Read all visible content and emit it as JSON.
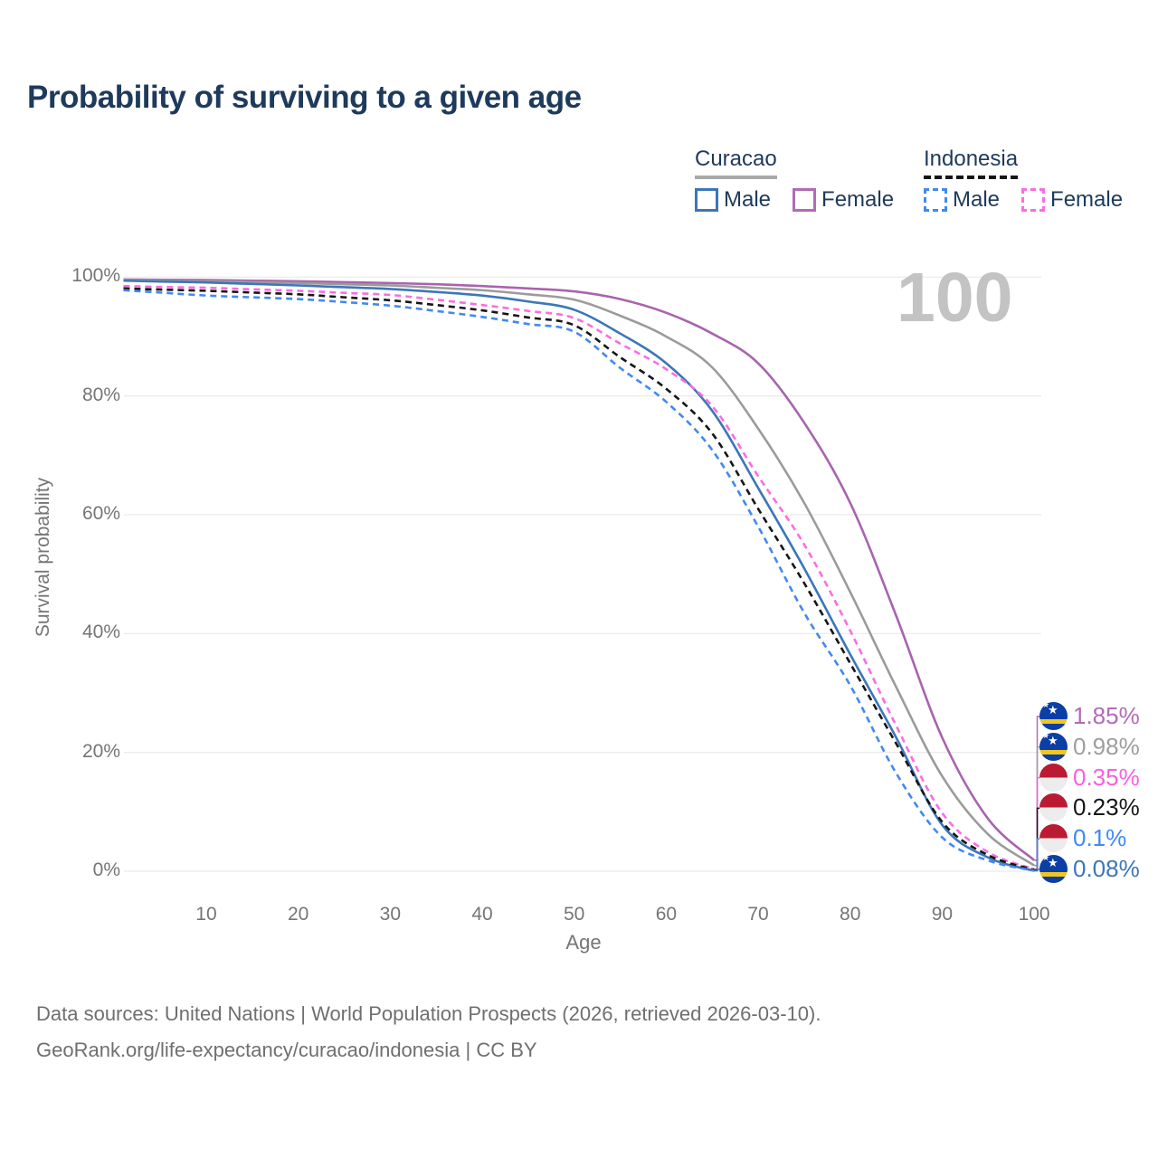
{
  "title": "Probability of surviving to a given age",
  "watermark": "100",
  "legend": {
    "groups": [
      {
        "country": "Curacao",
        "underline": "solid",
        "items": [
          {
            "label": "Male",
            "color": "#3c76ba",
            "dash": false
          },
          {
            "label": "Female",
            "color": "#b06cb4",
            "dash": false
          }
        ]
      },
      {
        "country": "Indonesia",
        "underline": "dashed",
        "items": [
          {
            "label": "Male",
            "color": "#4189f2",
            "dash": true
          },
          {
            "label": "Female",
            "color": "#fb6ce2",
            "dash": true
          }
        ]
      }
    ]
  },
  "axes": {
    "x_label": "Age",
    "y_label": "Survival probability",
    "x_ticks": [
      10,
      20,
      30,
      40,
      50,
      60,
      70,
      80,
      90,
      100
    ],
    "y_ticks": [
      "0%",
      "20%",
      "40%",
      "60%",
      "80%",
      "100%"
    ]
  },
  "end_labels": [
    {
      "value": "1.85%",
      "flag": "curacao",
      "color": "#b06cb4",
      "end_pct": 1.85
    },
    {
      "value": "0.98%",
      "flag": "curacao",
      "color": "#9e9e9e",
      "end_pct": 0.98
    },
    {
      "value": "0.35%",
      "flag": "indonesia",
      "color": "#fb5fe0",
      "end_pct": 0.35
    },
    {
      "value": "0.23%",
      "flag": "indonesia",
      "color": "#161616",
      "end_pct": 0.23
    },
    {
      "value": "0.1%",
      "flag": "indonesia",
      "color": "#4189f2",
      "end_pct": 0.1
    },
    {
      "value": "0.08%",
      "flag": "curacao",
      "color": "#3c76ba",
      "end_pct": 0.08
    }
  ],
  "footer": {
    "line1": "Data sources: United Nations | World Population Prospects (2026, retrieved 2026-03-10).",
    "line2": "GeoRank.org/life-expectancy/curacao/indonesia | CC BY"
  },
  "chart_data": {
    "type": "line",
    "title": "Probability of surviving to a given age",
    "xlabel": "Age",
    "ylabel": "Survival probability",
    "xlim": [
      1,
      100
    ],
    "ylim": [
      0,
      100
    ],
    "grid": "horizontal-only",
    "legend_position": "top-right",
    "watermark_age": 100,
    "ages": [
      1,
      5,
      10,
      15,
      20,
      25,
      30,
      35,
      40,
      45,
      50,
      55,
      60,
      65,
      70,
      75,
      80,
      85,
      90,
      95,
      100
    ],
    "series": [
      {
        "name": "Curacao Female",
        "country": "Curacao",
        "sex": "Female",
        "style": "solid",
        "color": "#a864ae",
        "end_label": "1.85%",
        "values": [
          99.6,
          99.55,
          99.5,
          99.4,
          99.3,
          99.15,
          99.0,
          98.8,
          98.5,
          98.1,
          97.6,
          96.3,
          94.0,
          90.5,
          85.5,
          75.5,
          62,
          43,
          22.5,
          8.8,
          1.85
        ]
      },
      {
        "name": "Curacao Total",
        "country": "Curacao",
        "sex": "Both",
        "style": "solid",
        "color": "#9b9b9b",
        "end_label": "0.98%",
        "values": [
          99.5,
          99.4,
          99.3,
          99.15,
          99.0,
          98.8,
          98.6,
          98.2,
          97.8,
          97.1,
          96.2,
          93.5,
          90.0,
          84.8,
          74.5,
          62,
          47,
          31,
          16,
          6.2,
          0.98
        ]
      },
      {
        "name": "Curacao Male",
        "country": "Curacao",
        "sex": "Male",
        "style": "solid",
        "color": "#3c76ba",
        "end_label": "0.08%",
        "values": [
          99.4,
          99.25,
          99.1,
          98.85,
          98.6,
          98.3,
          98.0,
          97.5,
          96.9,
          95.9,
          94.5,
          90.5,
          85.5,
          77.5,
          64.5,
          51,
          36.5,
          22.5,
          7.8,
          2.3,
          0.08
        ]
      },
      {
        "name": "Indonesia Female",
        "country": "Indonesia",
        "sex": "Female",
        "style": "dashed",
        "color": "#fb6ce2",
        "end_label": "0.35%",
        "values": [
          98.5,
          98.35,
          98.2,
          97.95,
          97.7,
          97.35,
          97.0,
          96.2,
          95.3,
          94.3,
          93.1,
          88.8,
          84.5,
          78.3,
          66.5,
          55,
          40.5,
          24.5,
          9.8,
          3.2,
          0.35
        ]
      },
      {
        "name": "Indonesia Total",
        "country": "Indonesia",
        "sex": "Both",
        "style": "dashed",
        "color": "#161616",
        "end_label": "0.23%",
        "values": [
          98.1,
          97.9,
          97.7,
          97.4,
          97.1,
          96.6,
          96.1,
          95.3,
          94.4,
          93.2,
          91.9,
          86.5,
          81.2,
          73.7,
          61,
          48.5,
          35,
          21.5,
          8.3,
          2.7,
          0.23
        ]
      },
      {
        "name": "Indonesia Male",
        "country": "Indonesia",
        "sex": "Male",
        "style": "dashed",
        "color": "#4189f2",
        "end_label": "0.1%",
        "values": [
          97.8,
          97.4,
          96.9,
          96.6,
          96.3,
          95.8,
          95.2,
          94.3,
          93.3,
          92.1,
          90.8,
          84.7,
          79.0,
          70.9,
          58,
          43.5,
          31.3,
          16.5,
          5.7,
          1.8,
          0.1
        ]
      }
    ]
  }
}
